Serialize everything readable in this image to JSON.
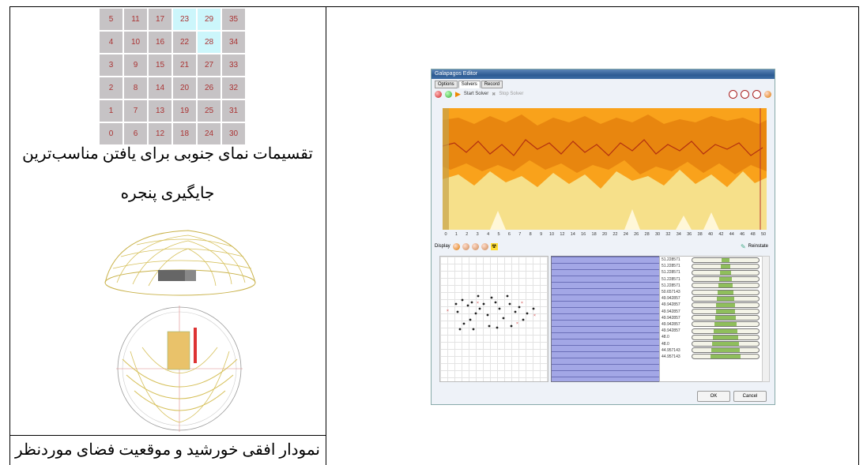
{
  "grid": {
    "rows": [
      [
        "5",
        "11",
        "17",
        "23",
        "29",
        "35"
      ],
      [
        "4",
        "10",
        "16",
        "22",
        "28",
        "34"
      ],
      [
        "3",
        "9",
        "15",
        "21",
        "27",
        "33"
      ],
      [
        "2",
        "8",
        "14",
        "20",
        "26",
        "32"
      ],
      [
        "1",
        "7",
        "13",
        "19",
        "25",
        "31"
      ],
      [
        "0",
        "6",
        "12",
        "18",
        "24",
        "30"
      ]
    ],
    "highlighted": [
      "23",
      "29",
      "28"
    ]
  },
  "captions": {
    "grid_caption_line1": "تقسیمات نمای جنوبی برای یافتن مناسب‌ترین",
    "grid_caption_line2": "جایگیری پنجره",
    "sun_caption": "نمودار افقی خورشید و موقعیت فضای موردنظر"
  },
  "galapagos": {
    "title": "Galapagos Editor",
    "tabs": [
      "Options",
      "Solvers",
      "Record"
    ],
    "active_tab": "Solvers",
    "start_label": "Start Solver",
    "stop_label": "Stop Solver",
    "display_label": "Display",
    "reinstate_label": "Reinstate",
    "ok_label": "OK",
    "cancel_label": "Cancel",
    "x_ticks": [
      "0",
      "1",
      "2",
      "3",
      "4",
      "5",
      "6",
      "7",
      "8",
      "9",
      "10",
      "12",
      "14",
      "16",
      "18",
      "20",
      "22",
      "24",
      "26",
      "28",
      "30",
      "32",
      "34",
      "36",
      "38",
      "40",
      "42",
      "44",
      "46",
      "48",
      "50"
    ],
    "fitness_values": [
      "51.228571",
      "51.228571",
      "51.228571",
      "51.228571",
      "51.228571",
      "50.657143",
      "49.942857",
      "49.942857",
      "49.942857",
      "49.942857",
      "49.942857",
      "49.942857",
      "48.0",
      "48.0",
      "44.957143",
      "44.957143"
    ]
  },
  "colors": {
    "highlight": "#ccf6fb",
    "grid_bg": "#c6c3c5",
    "band_outer": "#f9a21b",
    "band_inner": "#e8860f",
    "band_light": "#f6e08a"
  }
}
